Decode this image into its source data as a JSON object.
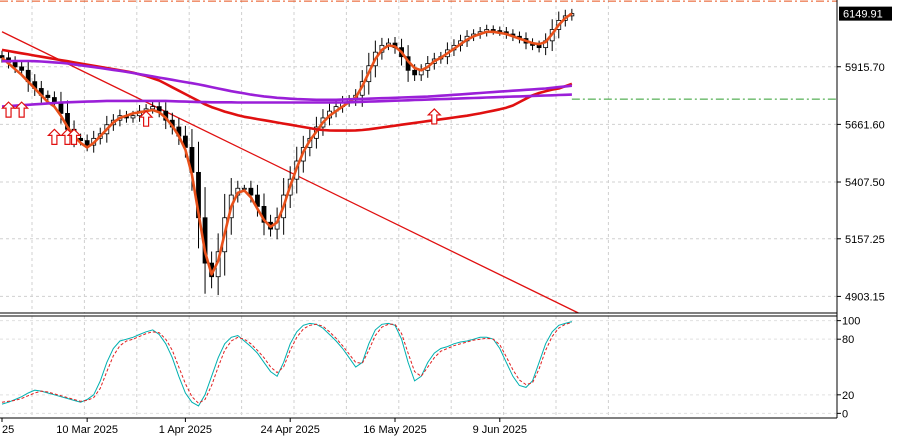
{
  "chart_data": [
    {
      "type": "candlestick",
      "title": "",
      "price_ticks": [
        "5915.70",
        "5661.60",
        "5407.50",
        "5157.25",
        "4903.15"
      ],
      "price_tick_values": [
        5915.7,
        5661.6,
        5407.5,
        5157.25,
        4903.15
      ],
      "last_price_label": "6149.91",
      "last_price": 6149.91,
      "ylim": [
        4830,
        6210
      ],
      "date_labels": [
        "25",
        "10 Mar 2025",
        "1 Apr 2025",
        "24 Apr 2025",
        "16 May 2025",
        "9 Jun 2025"
      ],
      "date_label_bars": [
        0,
        13,
        28,
        44,
        60,
        76
      ],
      "bar_count": 88,
      "close": [
        5955,
        5935,
        5915,
        5900,
        5850,
        5820,
        5790,
        5780,
        5760,
        5710,
        5640,
        5600,
        5590,
        5570,
        5600,
        5620,
        5660,
        5680,
        5700,
        5690,
        5700,
        5720,
        5730,
        5740,
        5720,
        5680,
        5650,
        5610,
        5560,
        5450,
        5250,
        5050,
        4990,
        5100,
        5250,
        5350,
        5380,
        5380,
        5350,
        5300,
        5230,
        5200,
        5250,
        5350,
        5420,
        5500,
        5560,
        5600,
        5650,
        5690,
        5720,
        5740,
        5760,
        5770,
        5790,
        5850,
        5920,
        5980,
        6010,
        6020,
        6000,
        5960,
        5900,
        5880,
        5900,
        5930,
        5950,
        5960,
        5990,
        6010,
        6030,
        6050,
        6060,
        6070,
        6080,
        6075,
        6070,
        6060,
        6050,
        6040,
        6020,
        6010,
        6000,
        6030,
        6080,
        6120,
        6140,
        6150
      ],
      "series": [
        {
          "name": "",
          "color": "#e8501a",
          "values": [
            5955,
            5930,
            5905,
            5880,
            5850,
            5820,
            5790,
            5760,
            5740,
            5700,
            5650,
            5610,
            5580,
            5560,
            5580,
            5610,
            5640,
            5670,
            5690,
            5700,
            5710,
            5715,
            5720,
            5725,
            5715,
            5690,
            5655,
            5610,
            5550,
            5440,
            5270,
            5100,
            5000,
            5060,
            5180,
            5300,
            5360,
            5370,
            5340,
            5290,
            5240,
            5210,
            5230,
            5300,
            5390,
            5470,
            5540,
            5590,
            5630,
            5670,
            5700,
            5720,
            5740,
            5760,
            5780,
            5830,
            5890,
            5950,
            5990,
            6010,
            6005,
            5980,
            5940,
            5910,
            5900,
            5915,
            5940,
            5955,
            5975,
            5995,
            6015,
            6035,
            6050,
            6060,
            6070,
            6070,
            6065,
            6060,
            6050,
            6040,
            6030,
            6020,
            6015,
            6025,
            6060,
            6100,
            6130,
            6150
          ]
        },
        {
          "name": "",
          "color": "#e01010",
          "values": [
            5990,
            5985,
            5980,
            5975,
            5970,
            5965,
            5960,
            5955,
            5950,
            5945,
            5940,
            5935,
            5930,
            5925,
            5920,
            5915,
            5910,
            5905,
            5900,
            5895,
            5890,
            5882,
            5875,
            5865,
            5855,
            5840,
            5825,
            5810,
            5795,
            5780,
            5765,
            5750,
            5738,
            5728,
            5718,
            5710,
            5702,
            5695,
            5690,
            5685,
            5680,
            5675,
            5670,
            5665,
            5660,
            5655,
            5650,
            5645,
            5640,
            5637,
            5635,
            5634,
            5634,
            5634,
            5635,
            5637,
            5640,
            5644,
            5648,
            5652,
            5656,
            5660,
            5664,
            5668,
            5672,
            5676,
            5680,
            5684,
            5688,
            5692,
            5696,
            5700,
            5705,
            5710,
            5716,
            5722,
            5728,
            5735,
            5745,
            5760,
            5775,
            5790,
            5800,
            5808,
            5815,
            5820,
            5830,
            5840
          ]
        },
        {
          "name": "",
          "color": "#9a1fd8",
          "values": [
            5940,
            5940,
            5941,
            5941,
            5941,
            5940,
            5939,
            5937,
            5935,
            5933,
            5930,
            5926,
            5922,
            5918,
            5914,
            5910,
            5906,
            5902,
            5898,
            5893,
            5888,
            5883,
            5878,
            5873,
            5868,
            5863,
            5858,
            5853,
            5848,
            5843,
            5838,
            5832,
            5826,
            5820,
            5814,
            5808,
            5803,
            5798,
            5793,
            5789,
            5785,
            5782,
            5779,
            5777,
            5775,
            5773,
            5772,
            5771,
            5770,
            5770,
            5770,
            5770,
            5771,
            5772,
            5773,
            5774,
            5775,
            5776,
            5777,
            5778,
            5779,
            5780,
            5781,
            5782,
            5783,
            5784,
            5786,
            5788,
            5790,
            5792,
            5794,
            5796,
            5798,
            5800,
            5802,
            5804,
            5806,
            5808,
            5810,
            5812,
            5814,
            5816,
            5818,
            5820,
            5823,
            5826,
            5829,
            5832
          ]
        },
        {
          "name": "",
          "color": "#9a1fd8",
          "values": [
            5740,
            5742,
            5744,
            5746,
            5748,
            5750,
            5752,
            5754,
            5756,
            5758,
            5759,
            5760,
            5761,
            5762,
            5763,
            5764,
            5765,
            5765,
            5765,
            5765,
            5765,
            5765,
            5765,
            5765,
            5765,
            5765,
            5764,
            5763,
            5762,
            5761,
            5760,
            5760,
            5759,
            5759,
            5759,
            5759,
            5758,
            5758,
            5758,
            5758,
            5758,
            5758,
            5758,
            5758,
            5758,
            5758,
            5758,
            5758,
            5758,
            5758,
            5758,
            5758,
            5758,
            5759,
            5760,
            5761,
            5762,
            5763,
            5764,
            5765,
            5766,
            5767,
            5768,
            5769,
            5770,
            5771,
            5772,
            5773,
            5774,
            5775,
            5776,
            5777,
            5778,
            5779,
            5780,
            5781,
            5782,
            5783,
            5784,
            5785,
            5786,
            5787,
            5788,
            5789,
            5790,
            5791,
            5792,
            5793
          ]
        }
      ],
      "trendline": {
        "color": "#e01010",
        "from": [
          0,
          6070
        ],
        "to": [
          88,
          4830
        ]
      },
      "reference_line": {
        "color": "#2e9e2e",
        "value": 5773
      },
      "top_line": {
        "color": "#e8501a",
        "value": 6205
      },
      "arrow_signals": [
        1,
        3,
        8,
        10,
        11,
        22,
        66
      ],
      "arrow_levels": [
        5720,
        5720,
        5600,
        5600,
        5600,
        5680,
        5690
      ]
    },
    {
      "type": "line",
      "title": "",
      "y_ticks": [
        "100",
        "80",
        "20",
        "0"
      ],
      "y_tick_values": [
        100,
        80,
        20,
        0
      ],
      "ylim": [
        -5,
        105
      ],
      "series": [
        {
          "name": "",
          "color": "#00b0b0",
          "values": [
            10,
            12,
            15,
            18,
            22,
            25,
            24,
            22,
            20,
            18,
            16,
            14,
            12,
            15,
            20,
            35,
            55,
            70,
            78,
            80,
            82,
            85,
            88,
            90,
            85,
            75,
            60,
            40,
            22,
            12,
            8,
            20,
            40,
            60,
            75,
            82,
            84,
            78,
            72,
            65,
            55,
            45,
            40,
            55,
            75,
            88,
            95,
            97,
            96,
            92,
            85,
            78,
            70,
            60,
            50,
            55,
            75,
            90,
            96,
            97,
            95,
            80,
            55,
            35,
            40,
            55,
            65,
            70,
            72,
            75,
            77,
            78,
            80,
            82,
            82,
            80,
            70,
            55,
            40,
            30,
            28,
            35,
            55,
            75,
            88,
            95,
            97,
            99
          ]
        },
        {
          "name": "",
          "color": "#e02020",
          "values": [
            12,
            13,
            14,
            16,
            19,
            22,
            24,
            23,
            21,
            19,
            17,
            15,
            13,
            14,
            17,
            27,
            45,
            62,
            73,
            78,
            80,
            83,
            86,
            88,
            87,
            80,
            68,
            50,
            32,
            18,
            11,
            15,
            30,
            50,
            68,
            78,
            82,
            80,
            75,
            68,
            60,
            50,
            44,
            50,
            68,
            82,
            91,
            95,
            96,
            94,
            88,
            81,
            73,
            64,
            55,
            54,
            68,
            84,
            93,
            96,
            96,
            86,
            65,
            45,
            40,
            50,
            60,
            67,
            70,
            73,
            75,
            77,
            79,
            80,
            81,
            80,
            74,
            61,
            47,
            36,
            31,
            33,
            48,
            68,
            83,
            92,
            96,
            98
          ]
        }
      ]
    }
  ]
}
